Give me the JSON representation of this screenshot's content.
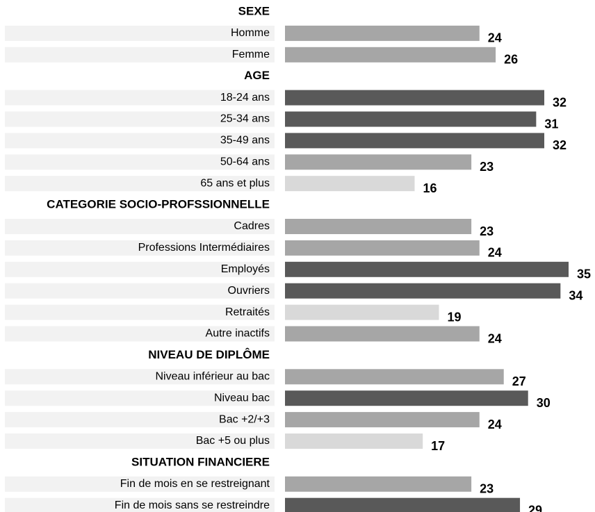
{
  "chart_data": {
    "type": "bar",
    "orientation": "horizontal",
    "groups": [
      {
        "name": "SEXE",
        "categories": [
          "Homme",
          "Femme"
        ],
        "values": [
          24,
          26
        ],
        "colors": [
          "#a6a6a6",
          "#a6a6a6"
        ]
      },
      {
        "name": "AGE",
        "categories": [
          "18-24 ans",
          "25-34 ans",
          "35-49 ans",
          "50-64 ans",
          "65 ans et plus"
        ],
        "values": [
          32,
          31,
          32,
          23,
          16
        ],
        "colors": [
          "#595959",
          "#595959",
          "#595959",
          "#a6a6a6",
          "#d9d9d9"
        ]
      },
      {
        "name": "CATEGORIE SOCIO-PROFSSIONNELLE",
        "categories": [
          "Cadres",
          "Professions Intermédiaires",
          "Employés",
          "Ouvriers",
          "Retraités",
          "Autre inactifs"
        ],
        "values": [
          23,
          24,
          35,
          34,
          19,
          24
        ],
        "colors": [
          "#a6a6a6",
          "#a6a6a6",
          "#595959",
          "#595959",
          "#d9d9d9",
          "#a6a6a6"
        ]
      },
      {
        "name": "NIVEAU DE DIPLÔME",
        "categories": [
          "Niveau inférieur au bac",
          "Niveau bac",
          "Bac +2/+3",
          "Bac +5 ou plus"
        ],
        "values": [
          27,
          30,
          24,
          17
        ],
        "colors": [
          "#a6a6a6",
          "#595959",
          "#a6a6a6",
          "#d9d9d9"
        ]
      },
      {
        "name": "SITUATION FINANCIERE",
        "categories": [
          "Fin de mois en se restreignant",
          "Fin de mois sans se restreindre"
        ],
        "values": [
          23,
          29
        ],
        "colors": [
          "#a6a6a6",
          "#595959"
        ]
      }
    ]
  }
}
